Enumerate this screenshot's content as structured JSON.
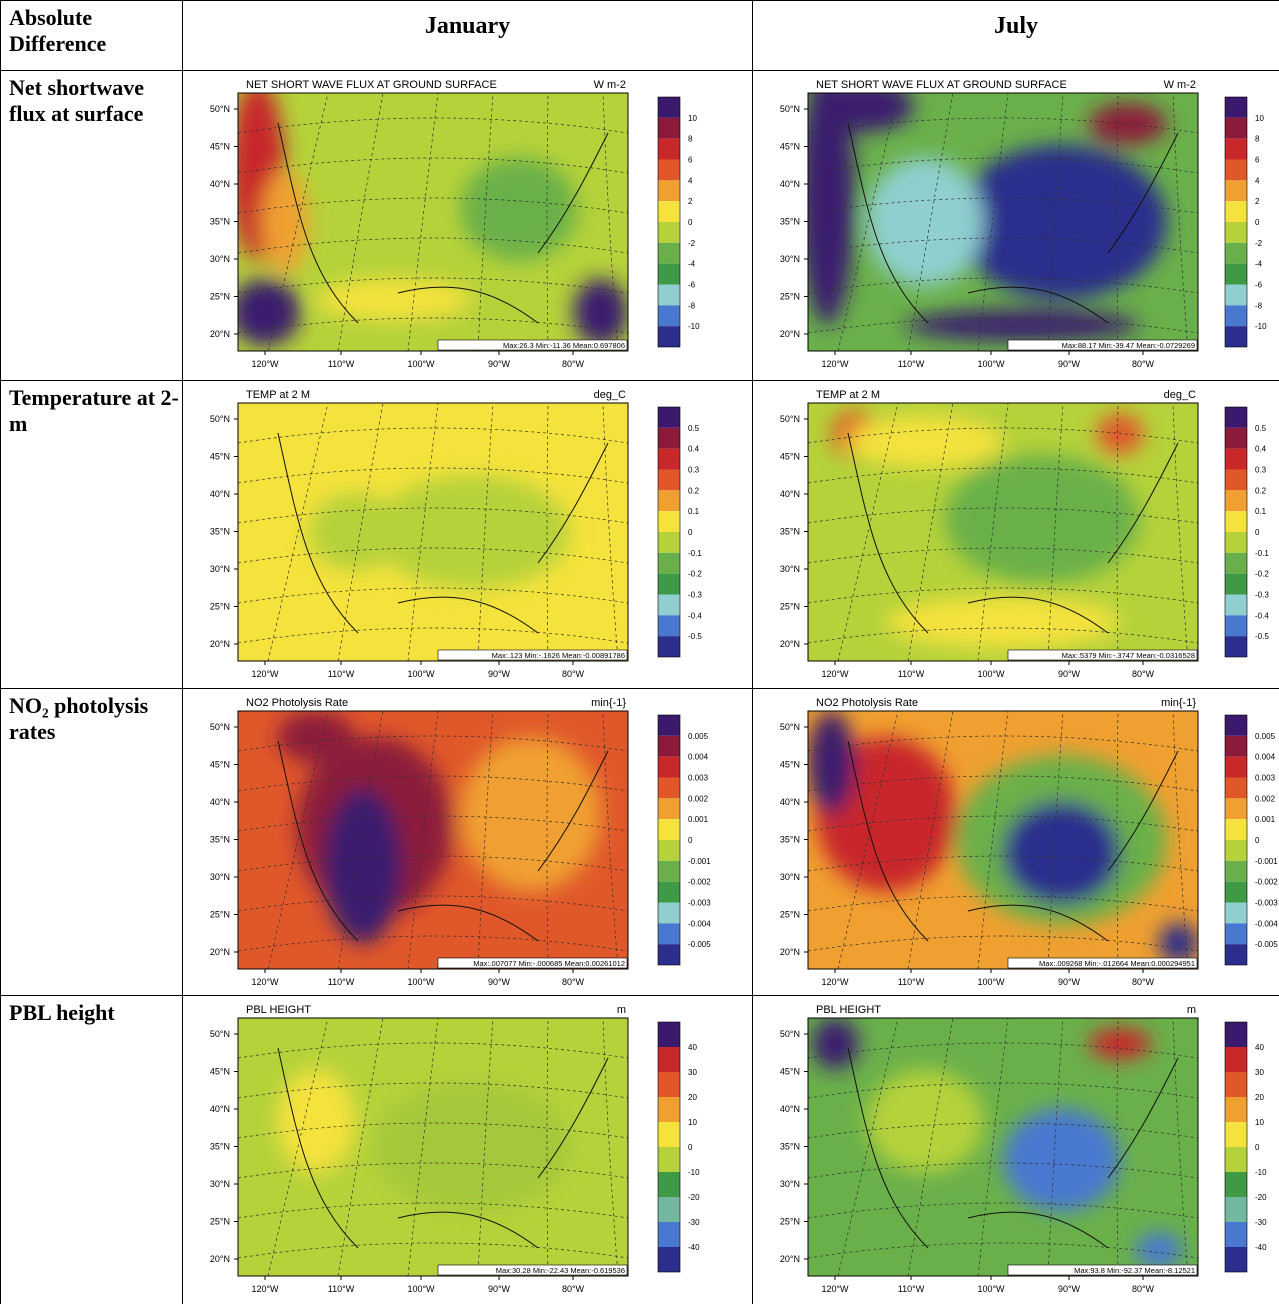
{
  "header": {
    "corner": "Absolute Difference",
    "columns": [
      "January",
      "July"
    ]
  },
  "lat_labels": [
    "50°N",
    "45°N",
    "40°N",
    "35°N",
    "30°N",
    "25°N",
    "20°N"
  ],
  "lon_labels": [
    "120°W",
    "110°W",
    "100°W",
    "90°W",
    "80°W"
  ],
  "rows": [
    {
      "label": "Net shortwave flux at surface",
      "title": "NET SHORT WAVE FLUX AT GROUND SURFACE",
      "units": "W m-2",
      "colorbar_labels": [
        "10",
        "8",
        "6",
        "4",
        "2",
        "0",
        "-2",
        "-4",
        "-6",
        "-8",
        "-10"
      ],
      "colorbar_colors": [
        "#3b1a6e",
        "#8c1a3a",
        "#c8282a",
        "#e0582a",
        "#f0a030",
        "#f5e23c",
        "#b5d23a",
        "#6ab04a",
        "#3f9a45",
        "#8fcfcf",
        "#4a78d0",
        "#2b2e8c"
      ],
      "panels": [
        {
          "stats": "Max:26.3  Min:-11.36  Mean:0.697806"
        },
        {
          "stats": "Max:88.17  Min:-39.47  Mean:-0.0729269"
        }
      ]
    },
    {
      "label": "Temperature at 2-m",
      "title": "TEMP at 2 M",
      "units": "deg_C",
      "colorbar_labels": [
        "0.5",
        "0.4",
        "0.3",
        "0.2",
        "0.1",
        "0",
        "-0.1",
        "-0.2",
        "-0.3",
        "-0.4",
        "-0.5"
      ],
      "colorbar_colors": [
        "#3b1a6e",
        "#8c1a3a",
        "#c8282a",
        "#e0582a",
        "#f0a030",
        "#f5e23c",
        "#b5d23a",
        "#6ab04a",
        "#3f9a45",
        "#8fcfcf",
        "#4a78d0",
        "#2b2e8c"
      ],
      "panels": [
        {
          "stats": "Max:.123  Min:-.1626  Mean:-0.00891786"
        },
        {
          "stats": "Max:.5379  Min:-.3747  Mean:-0.0316528"
        }
      ]
    },
    {
      "label": "NO₂ photolysis rates",
      "title": "NO2 Photolysis Rate",
      "units": "min{-1}",
      "colorbar_labels": [
        "0.005",
        "0.004",
        "0.003",
        "0.002",
        "0.001",
        "0",
        "-0.001",
        "-0.002",
        "-0.003",
        "-0.004",
        "-0.005"
      ],
      "colorbar_colors": [
        "#3b1a6e",
        "#8c1a3a",
        "#c8282a",
        "#e0582a",
        "#f0a030",
        "#f5e23c",
        "#b5d23a",
        "#6ab04a",
        "#3f9a45",
        "#8fcfcf",
        "#4a78d0",
        "#2b2e8c"
      ],
      "panels": [
        {
          "stats": "Max:.007077  Min:-.000685  Mean:0.00261012"
        },
        {
          "stats": "Max:.009268  Min:-.012664  Mean:0.000294951"
        }
      ]
    },
    {
      "label": "PBL height",
      "title": "PBL HEIGHT",
      "units": "m",
      "colorbar_labels": [
        "40",
        "30",
        "20",
        "10",
        "0",
        "-10",
        "-20",
        "-30",
        "-40"
      ],
      "colorbar_colors": [
        "#3b1a6e",
        "#c8282a",
        "#e0582a",
        "#f0a030",
        "#f5e23c",
        "#b5d23a",
        "#3f9a45",
        "#72b8a0",
        "#4a78d0",
        "#2b2e8c"
      ],
      "panels": [
        {
          "stats": "Max:30.28  Min:-22.43  Mean:-0.619536"
        },
        {
          "stats": "Max:93.8  Min:-92.37  Mean:-8.12521"
        }
      ]
    }
  ]
}
